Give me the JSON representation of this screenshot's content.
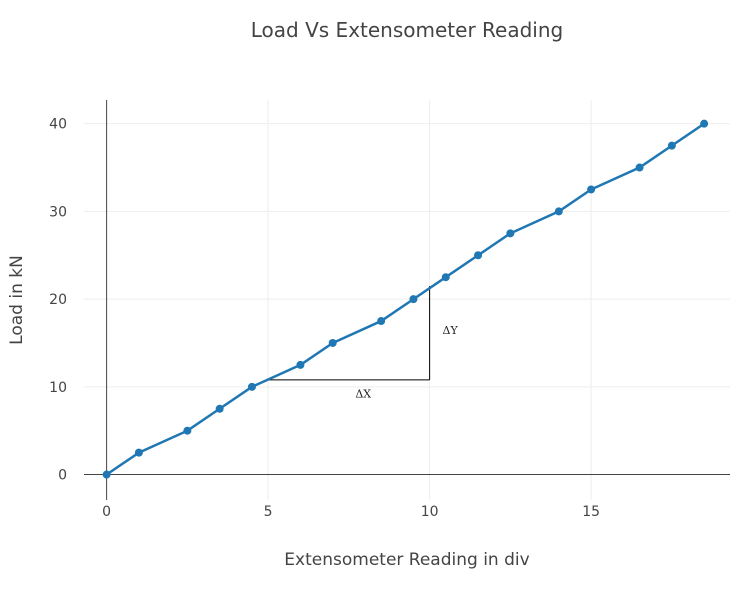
{
  "chart_data": {
    "type": "line",
    "title": "Load Vs Extensometer Reading",
    "xlabel": "Extensometer Reading in div",
    "ylabel": "Load in kN",
    "xlim": [
      -0.7,
      19.3
    ],
    "ylim": [
      -2.9,
      42.7
    ],
    "xticks": [
      0,
      5,
      10,
      15
    ],
    "yticks": [
      0,
      10,
      20,
      30,
      40
    ],
    "grid": true,
    "color": "#1f77b4",
    "series": [
      {
        "x": [
          0,
          1,
          2.5,
          3.5,
          4.5,
          6,
          7,
          8.5,
          9.5,
          10.5,
          11.5,
          12.5,
          14,
          15,
          16.5,
          17.5,
          18.5
        ],
        "y": [
          0,
          2.5,
          5,
          7.5,
          10,
          12.5,
          15,
          17.5,
          20,
          22.5,
          25,
          27.5,
          30,
          32.5,
          35,
          37.5,
          40
        ]
      }
    ],
    "annotations": [
      {
        "text": "ΔY",
        "x": 10.4,
        "y": 16
      },
      {
        "text": "ΔX",
        "x": 7.7,
        "y": 8.8
      }
    ],
    "slope_triangle": {
      "x0": 5,
      "x1": 10,
      "y0": 10.8,
      "y1": 21.5
    }
  }
}
